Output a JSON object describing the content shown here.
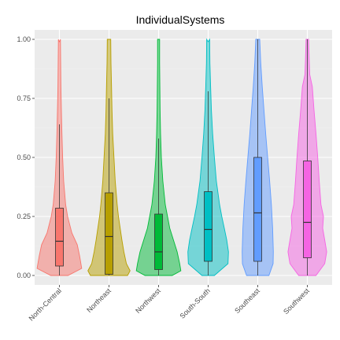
{
  "chart_data": {
    "type": "violin",
    "title": "IndividualSystems",
    "xlabel": "",
    "ylabel": "",
    "ylim": [
      -0.04,
      1.04
    ],
    "yticks": [
      0,
      0.25,
      0.5,
      0.75,
      1
    ],
    "ytick_labels": [
      "0.00",
      "0.25",
      "0.50",
      "0.75",
      "1.00"
    ],
    "grid": true,
    "legend": "none",
    "categories": [
      "North-Central",
      "Northeast",
      "Northwest",
      "South-South",
      "Southeast",
      "Southwest"
    ],
    "series": [
      {
        "category": "North-Central",
        "color": "#F8766D",
        "density_hw": [
          [
            0.0,
            0.35
          ],
          [
            0.03,
            0.9
          ],
          [
            0.08,
            0.82
          ],
          [
            0.13,
            0.72
          ],
          [
            0.18,
            0.5
          ],
          [
            0.25,
            0.33
          ],
          [
            0.3,
            0.25
          ],
          [
            0.4,
            0.17
          ],
          [
            0.5,
            0.13
          ],
          [
            0.6,
            0.1
          ],
          [
            0.7,
            0.08
          ],
          [
            0.8,
            0.06
          ],
          [
            0.9,
            0.05
          ],
          [
            1.0,
            0.04
          ]
        ],
        "q1": 0.04,
        "median": 0.145,
        "q3": 0.285,
        "whisker_low": 0.0,
        "whisker_high": 0.64,
        "ymax": 0.99
      },
      {
        "category": "Northeast",
        "color": "#B79F00",
        "density_hw": [
          [
            0.0,
            0.75
          ],
          [
            0.02,
            0.85
          ],
          [
            0.05,
            0.7
          ],
          [
            0.1,
            0.6
          ],
          [
            0.15,
            0.52
          ],
          [
            0.2,
            0.45
          ],
          [
            0.25,
            0.38
          ],
          [
            0.3,
            0.33
          ],
          [
            0.4,
            0.25
          ],
          [
            0.5,
            0.2
          ],
          [
            0.6,
            0.15
          ],
          [
            0.7,
            0.12
          ],
          [
            0.8,
            0.1
          ],
          [
            0.9,
            0.08
          ],
          [
            1.0,
            0.07
          ]
        ],
        "q1": 0.005,
        "median": 0.165,
        "q3": 0.35,
        "whisker_low": 0.0,
        "whisker_high": 0.75,
        "ymax": 1.0
      },
      {
        "category": "Northwest",
        "color": "#00BA38",
        "density_hw": [
          [
            0.0,
            0.55
          ],
          [
            0.02,
            0.9
          ],
          [
            0.05,
            0.85
          ],
          [
            0.1,
            0.75
          ],
          [
            0.15,
            0.6
          ],
          [
            0.2,
            0.45
          ],
          [
            0.3,
            0.27
          ],
          [
            0.4,
            0.17
          ],
          [
            0.5,
            0.11
          ],
          [
            0.6,
            0.08
          ],
          [
            0.7,
            0.06
          ],
          [
            0.8,
            0.05
          ],
          [
            0.9,
            0.04
          ],
          [
            1.0,
            0.04
          ]
        ],
        "q1": 0.025,
        "median": 0.1,
        "q3": 0.26,
        "whisker_low": 0.0,
        "whisker_high": 0.58,
        "ymax": 1.0
      },
      {
        "category": "South-South",
        "color": "#00BFC4",
        "density_hw": [
          [
            0.0,
            0.25
          ],
          [
            0.05,
            0.8
          ],
          [
            0.1,
            0.82
          ],
          [
            0.15,
            0.75
          ],
          [
            0.2,
            0.65
          ],
          [
            0.25,
            0.55
          ],
          [
            0.3,
            0.46
          ],
          [
            0.4,
            0.33
          ],
          [
            0.5,
            0.25
          ],
          [
            0.6,
            0.18
          ],
          [
            0.7,
            0.13
          ],
          [
            0.8,
            0.1
          ],
          [
            0.9,
            0.07
          ],
          [
            1.0,
            0.06
          ]
        ],
        "q1": 0.06,
        "median": 0.195,
        "q3": 0.355,
        "whisker_low": 0.0,
        "whisker_high": 0.78,
        "ymax": 0.99
      },
      {
        "category": "Southeast",
        "color": "#619CFF",
        "density_hw": [
          [
            0.0,
            0.45
          ],
          [
            0.05,
            0.62
          ],
          [
            0.1,
            0.63
          ],
          [
            0.2,
            0.6
          ],
          [
            0.3,
            0.55
          ],
          [
            0.4,
            0.48
          ],
          [
            0.5,
            0.4
          ],
          [
            0.6,
            0.32
          ],
          [
            0.7,
            0.25
          ],
          [
            0.8,
            0.18
          ],
          [
            0.9,
            0.12
          ],
          [
            1.0,
            0.08
          ]
        ],
        "q1": 0.06,
        "median": 0.265,
        "q3": 0.5,
        "whisker_low": 0.0,
        "whisker_high": 1.0,
        "ymax": 1.0
      },
      {
        "category": "Southwest",
        "color": "#F564E3",
        "density_hw": [
          [
            0.0,
            0.35
          ],
          [
            0.05,
            0.7
          ],
          [
            0.1,
            0.78
          ],
          [
            0.15,
            0.7
          ],
          [
            0.2,
            0.62
          ],
          [
            0.25,
            0.65
          ],
          [
            0.3,
            0.55
          ],
          [
            0.4,
            0.48
          ],
          [
            0.5,
            0.42
          ],
          [
            0.6,
            0.35
          ],
          [
            0.7,
            0.27
          ],
          [
            0.8,
            0.2
          ],
          [
            0.85,
            0.1
          ],
          [
            0.9,
            0.08
          ],
          [
            1.0,
            0.05
          ]
        ],
        "q1": 0.075,
        "median": 0.225,
        "q3": 0.485,
        "whisker_low": 0.0,
        "whisker_high": 1.0,
        "ymax": 1.0
      }
    ]
  },
  "style": {
    "panel_bg": "#EBEBEB",
    "grid_major": "#FFFFFF",
    "grid_minor": "#F2F2F2",
    "axis_text": "#4D4D4D"
  }
}
